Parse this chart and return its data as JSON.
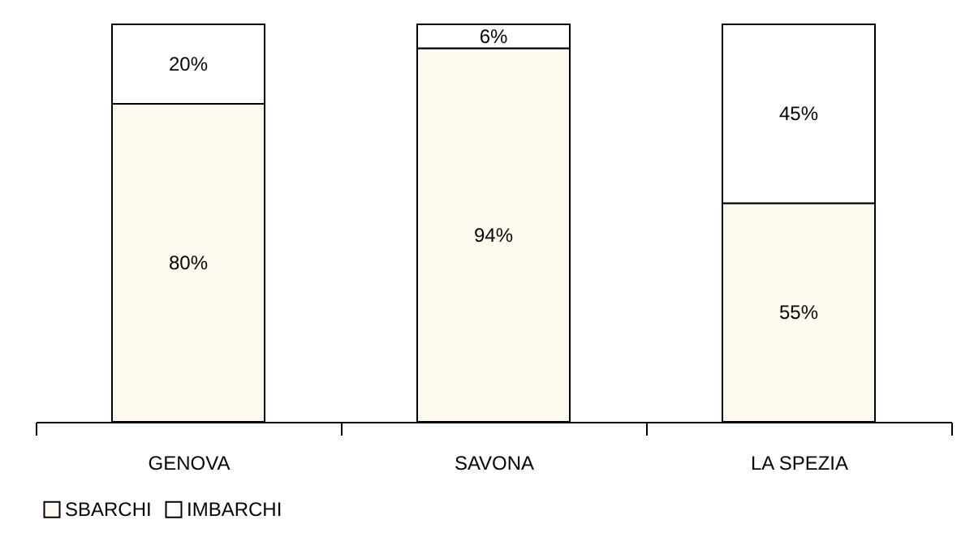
{
  "chart_data": {
    "type": "bar",
    "stacked": true,
    "categories": [
      "GENOVA",
      "SAVONA",
      "LA SPEZIA"
    ],
    "series": [
      {
        "name": "SBARCHI",
        "color": "#fffaf0",
        "values": [
          80,
          94,
          55
        ],
        "value_labels": [
          "80%",
          "94%",
          "55%"
        ]
      },
      {
        "name": "IMBARCHI",
        "color": "#ffffff",
        "values": [
          20,
          6,
          45
        ],
        "value_labels": [
          "20%",
          "6%",
          "45%"
        ]
      }
    ],
    "legend": "bottom left",
    "grid": false
  }
}
